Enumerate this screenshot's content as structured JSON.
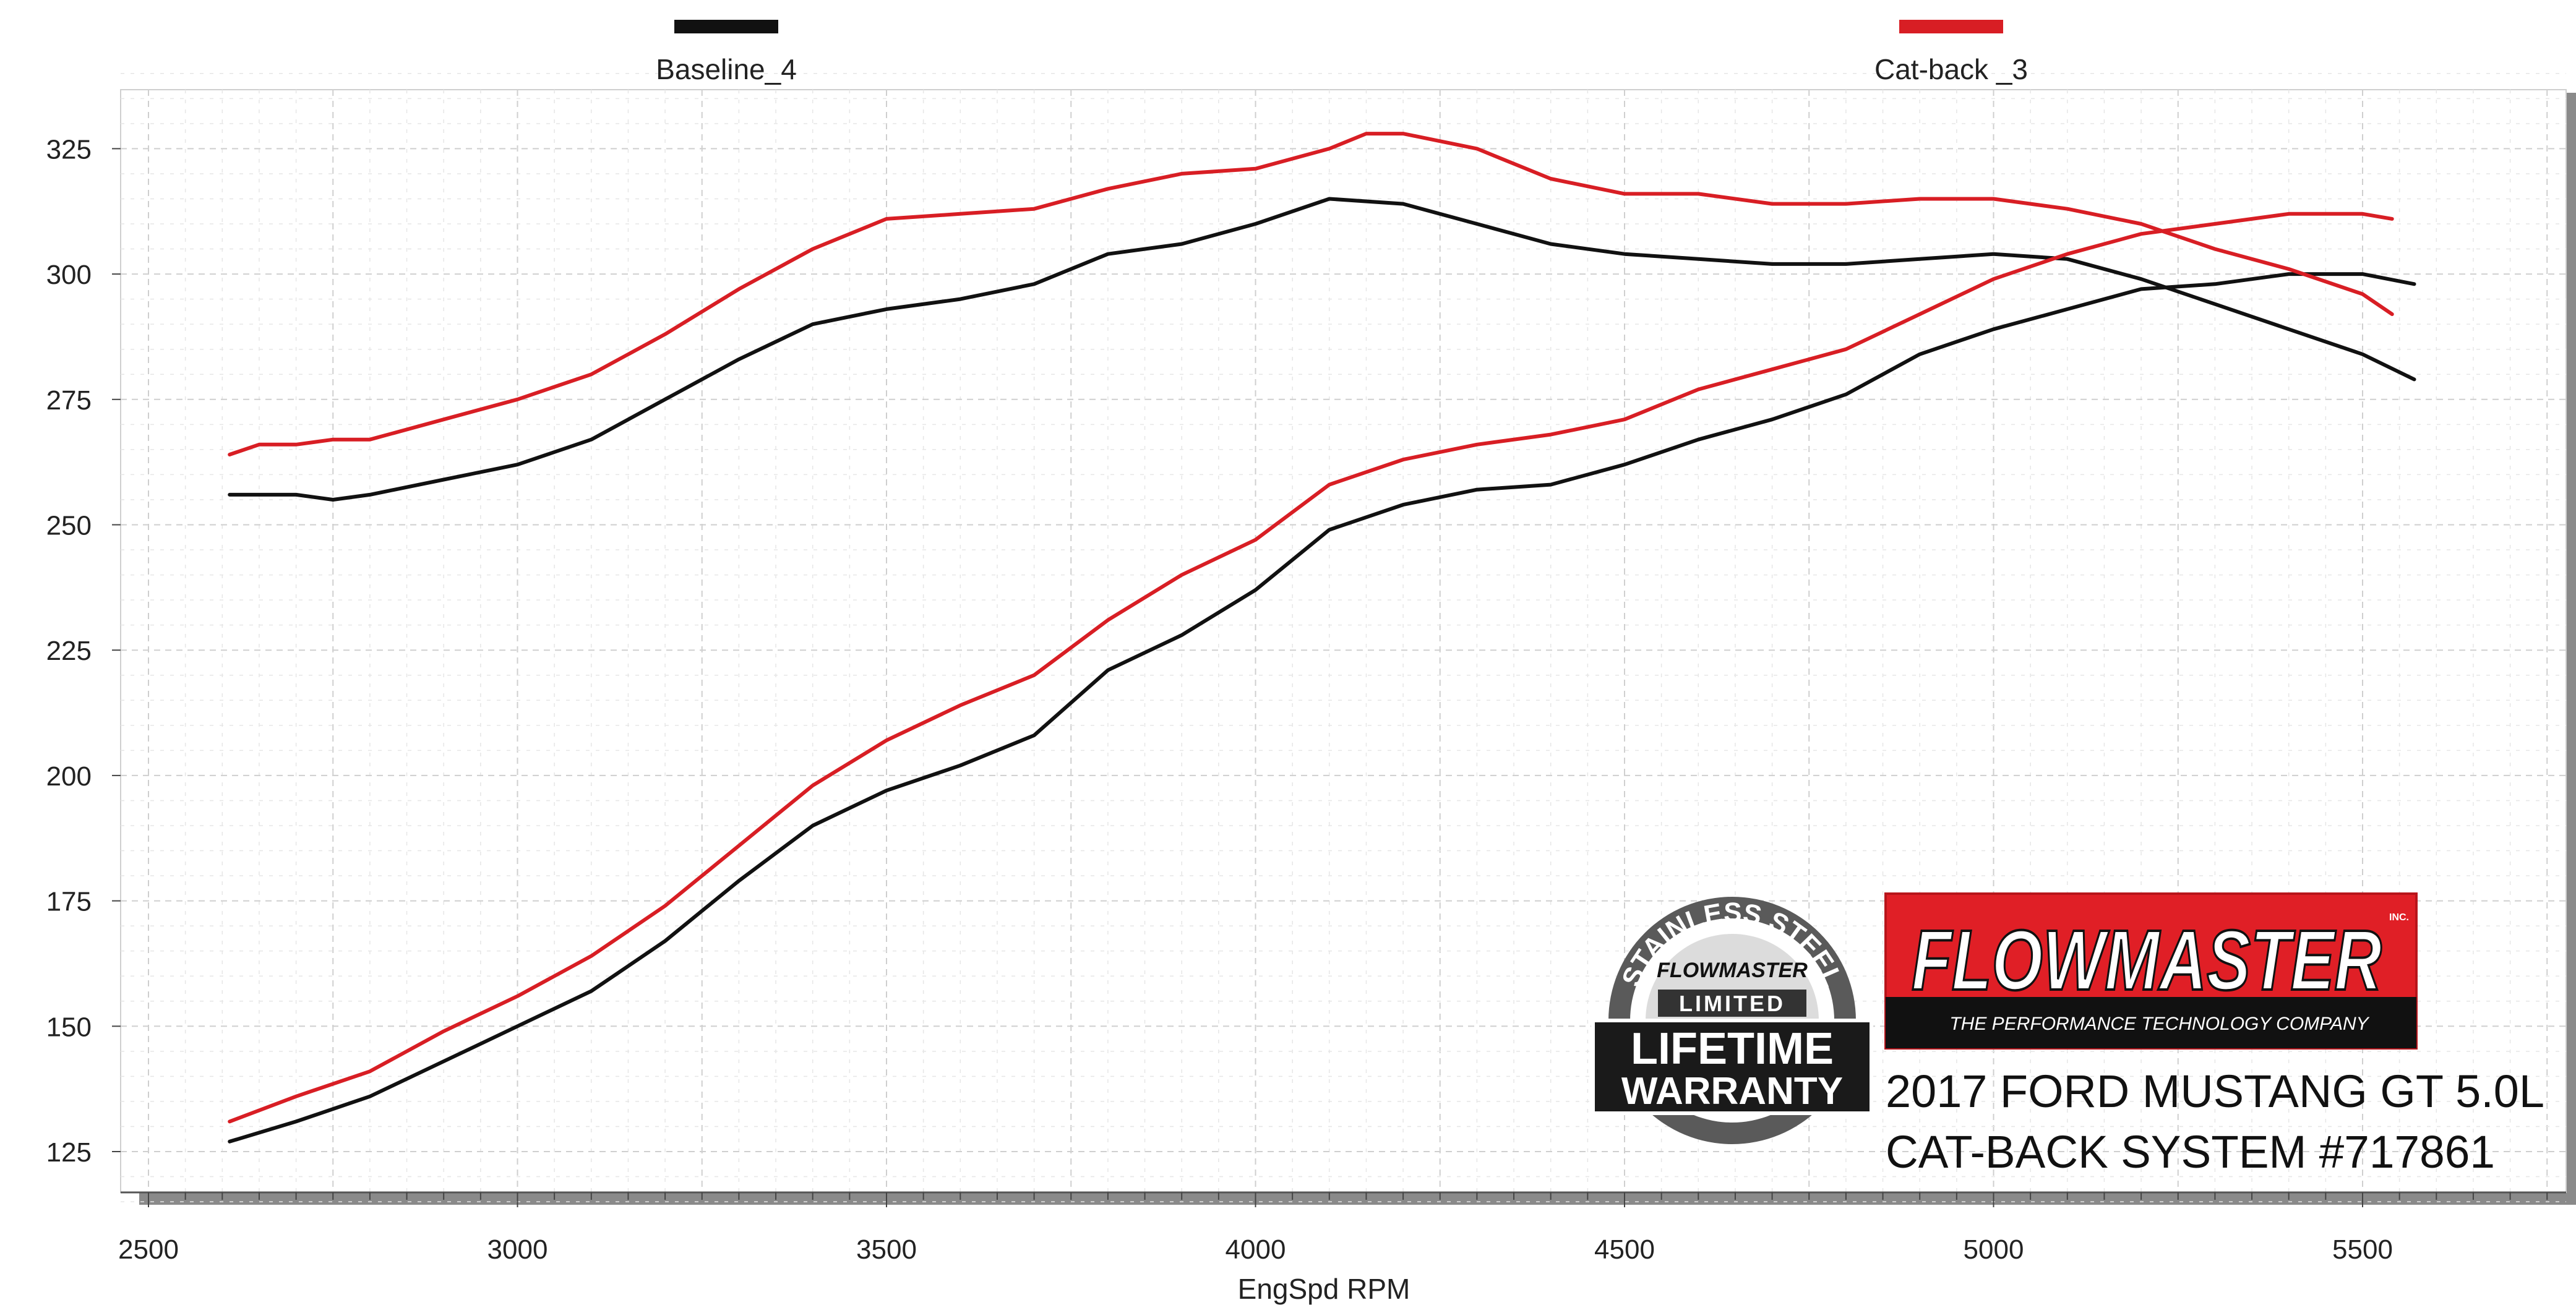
{
  "chart_data": {
    "type": "line",
    "xlabel": "EngSpd  RPM",
    "ylabel": "",
    "xlim": [
      2500,
      5750
    ],
    "ylim": [
      115,
      340
    ],
    "xticks": [
      2500,
      3000,
      3500,
      4000,
      4500,
      5000,
      5500
    ],
    "yticks": [
      125,
      150,
      175,
      200,
      225,
      250,
      275,
      300,
      325
    ],
    "grid": true,
    "legend_position": "top",
    "colors": {
      "baseline": "#111111",
      "catback": "#d81e24"
    },
    "series": [
      {
        "name": "Baseline_4",
        "curves": [
          {
            "quantity": "torque",
            "points": [
              [
                2610,
                256
              ],
              [
                2650,
                256
              ],
              [
                2700,
                256
              ],
              [
                2750,
                255
              ],
              [
                2800,
                256
              ],
              [
                2900,
                259
              ],
              [
                3000,
                262
              ],
              [
                3100,
                267
              ],
              [
                3200,
                275
              ],
              [
                3300,
                283
              ],
              [
                3400,
                290
              ],
              [
                3500,
                293
              ],
              [
                3600,
                295
              ],
              [
                3700,
                298
              ],
              [
                3800,
                304
              ],
              [
                3900,
                306
              ],
              [
                4000,
                310
              ],
              [
                4100,
                315
              ],
              [
                4200,
                314
              ],
              [
                4300,
                310
              ],
              [
                4400,
                306
              ],
              [
                4500,
                304
              ],
              [
                4600,
                303
              ],
              [
                4700,
                302
              ],
              [
                4800,
                302
              ],
              [
                4900,
                303
              ],
              [
                5000,
                304
              ],
              [
                5100,
                303
              ],
              [
                5200,
                299
              ],
              [
                5300,
                294
              ],
              [
                5400,
                289
              ],
              [
                5500,
                284
              ],
              [
                5570,
                279
              ]
            ]
          },
          {
            "quantity": "horsepower",
            "points": [
              [
                2610,
                127
              ],
              [
                2700,
                131
              ],
              [
                2800,
                136
              ],
              [
                2900,
                143
              ],
              [
                3000,
                150
              ],
              [
                3100,
                157
              ],
              [
                3200,
                167
              ],
              [
                3300,
                179
              ],
              [
                3400,
                190
              ],
              [
                3500,
                197
              ],
              [
                3600,
                202
              ],
              [
                3700,
                208
              ],
              [
                3800,
                221
              ],
              [
                3900,
                228
              ],
              [
                4000,
                237
              ],
              [
                4100,
                249
              ],
              [
                4200,
                254
              ],
              [
                4300,
                257
              ],
              [
                4400,
                258
              ],
              [
                4500,
                262
              ],
              [
                4600,
                267
              ],
              [
                4700,
                271
              ],
              [
                4800,
                276
              ],
              [
                4900,
                284
              ],
              [
                5000,
                289
              ],
              [
                5100,
                293
              ],
              [
                5200,
                297
              ],
              [
                5300,
                298
              ],
              [
                5400,
                300
              ],
              [
                5500,
                300
              ],
              [
                5570,
                298
              ]
            ]
          }
        ]
      },
      {
        "name": "Cat-back _3",
        "curves": [
          {
            "quantity": "torque",
            "points": [
              [
                2610,
                264
              ],
              [
                2650,
                266
              ],
              [
                2700,
                266
              ],
              [
                2750,
                267
              ],
              [
                2800,
                267
              ],
              [
                2900,
                271
              ],
              [
                3000,
                275
              ],
              [
                3100,
                280
              ],
              [
                3200,
                288
              ],
              [
                3300,
                297
              ],
              [
                3400,
                305
              ],
              [
                3500,
                311
              ],
              [
                3600,
                312
              ],
              [
                3700,
                313
              ],
              [
                3800,
                317
              ],
              [
                3900,
                320
              ],
              [
                4000,
                321
              ],
              [
                4100,
                325
              ],
              [
                4150,
                328
              ],
              [
                4200,
                328
              ],
              [
                4300,
                325
              ],
              [
                4400,
                319
              ],
              [
                4500,
                316
              ],
              [
                4600,
                316
              ],
              [
                4700,
                314
              ],
              [
                4800,
                314
              ],
              [
                4900,
                315
              ],
              [
                5000,
                315
              ],
              [
                5100,
                313
              ],
              [
                5200,
                310
              ],
              [
                5300,
                305
              ],
              [
                5400,
                301
              ],
              [
                5500,
                296
              ],
              [
                5540,
                292
              ]
            ]
          },
          {
            "quantity": "horsepower",
            "points": [
              [
                2610,
                131
              ],
              [
                2700,
                136
              ],
              [
                2800,
                141
              ],
              [
                2900,
                149
              ],
              [
                3000,
                156
              ],
              [
                3100,
                164
              ],
              [
                3200,
                174
              ],
              [
                3300,
                186
              ],
              [
                3400,
                198
              ],
              [
                3500,
                207
              ],
              [
                3600,
                214
              ],
              [
                3700,
                220
              ],
              [
                3800,
                231
              ],
              [
                3900,
                240
              ],
              [
                4000,
                247
              ],
              [
                4100,
                258
              ],
              [
                4200,
                263
              ],
              [
                4300,
                266
              ],
              [
                4400,
                268
              ],
              [
                4500,
                271
              ],
              [
                4600,
                277
              ],
              [
                4700,
                281
              ],
              [
                4800,
                285
              ],
              [
                4900,
                292
              ],
              [
                5000,
                299
              ],
              [
                5100,
                304
              ],
              [
                5200,
                308
              ],
              [
                5300,
                310
              ],
              [
                5400,
                312
              ],
              [
                5500,
                312
              ],
              [
                5540,
                311
              ]
            ]
          }
        ]
      }
    ]
  },
  "warranty_badge": {
    "top_text": "STAINLESS STEEL",
    "brand": "FLOWMASTER",
    "limited": "LIMITED",
    "lifetime": "LIFETIME",
    "warranty": "WARRANTY"
  },
  "logo": {
    "brand": "FLOWMASTER",
    "inc": "INC.",
    "tagline": "THE PERFORMANCE TECHNOLOGY COMPANY"
  },
  "caption": {
    "line1": "2017 FORD MUSTANG GT 5.0L",
    "line2": "CAT-BACK SYSTEM #717861"
  }
}
